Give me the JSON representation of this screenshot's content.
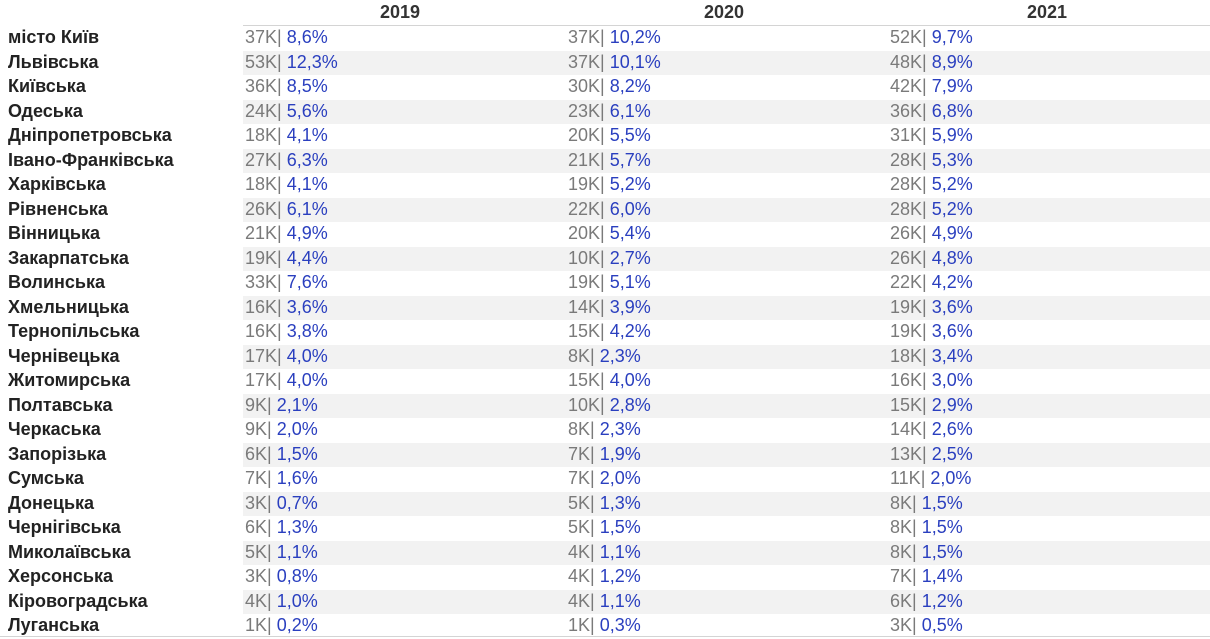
{
  "chart_data": {
    "type": "table",
    "columns": [
      "2019",
      "2020",
      "2021"
    ],
    "separator": "|",
    "rows": [
      {
        "region": "місто Київ",
        "cells": [
          {
            "count": "37K",
            "pct": "8,6%"
          },
          {
            "count": "37K",
            "pct": "10,2%"
          },
          {
            "count": "52K",
            "pct": "9,7%"
          }
        ]
      },
      {
        "region": "Львівська",
        "cells": [
          {
            "count": "53K",
            "pct": "12,3%"
          },
          {
            "count": "37K",
            "pct": "10,1%"
          },
          {
            "count": "48K",
            "pct": "8,9%"
          }
        ]
      },
      {
        "region": "Київська",
        "cells": [
          {
            "count": "36K",
            "pct": "8,5%"
          },
          {
            "count": "30K",
            "pct": "8,2%"
          },
          {
            "count": "42K",
            "pct": "7,9%"
          }
        ]
      },
      {
        "region": "Одеська",
        "cells": [
          {
            "count": "24K",
            "pct": "5,6%"
          },
          {
            "count": "23K",
            "pct": "6,1%"
          },
          {
            "count": "36K",
            "pct": "6,8%"
          }
        ]
      },
      {
        "region": "Дніпропетровська",
        "cells": [
          {
            "count": "18K",
            "pct": "4,1%"
          },
          {
            "count": "20K",
            "pct": "5,5%"
          },
          {
            "count": "31K",
            "pct": "5,9%"
          }
        ]
      },
      {
        "region": "Івано-Франківська",
        "cells": [
          {
            "count": "27K",
            "pct": "6,3%"
          },
          {
            "count": "21K",
            "pct": "5,7%"
          },
          {
            "count": "28K",
            "pct": "5,3%"
          }
        ]
      },
      {
        "region": "Харківська",
        "cells": [
          {
            "count": "18K",
            "pct": "4,1%"
          },
          {
            "count": "19K",
            "pct": "5,2%"
          },
          {
            "count": "28K",
            "pct": "5,2%"
          }
        ]
      },
      {
        "region": "Рівненська",
        "cells": [
          {
            "count": "26K",
            "pct": "6,1%"
          },
          {
            "count": "22K",
            "pct": "6,0%"
          },
          {
            "count": "28K",
            "pct": "5,2%"
          }
        ]
      },
      {
        "region": "Вінницька",
        "cells": [
          {
            "count": "21K",
            "pct": "4,9%"
          },
          {
            "count": "20K",
            "pct": "5,4%"
          },
          {
            "count": "26K",
            "pct": "4,9%"
          }
        ]
      },
      {
        "region": "Закарпатська",
        "cells": [
          {
            "count": "19K",
            "pct": "4,4%"
          },
          {
            "count": "10K",
            "pct": "2,7%"
          },
          {
            "count": "26K",
            "pct": "4,8%"
          }
        ]
      },
      {
        "region": "Волинська",
        "cells": [
          {
            "count": "33K",
            "pct": "7,6%"
          },
          {
            "count": "19K",
            "pct": "5,1%"
          },
          {
            "count": "22K",
            "pct": "4,2%"
          }
        ]
      },
      {
        "region": "Хмельницька",
        "cells": [
          {
            "count": "16K",
            "pct": "3,6%"
          },
          {
            "count": "14K",
            "pct": "3,9%"
          },
          {
            "count": "19K",
            "pct": "3,6%"
          }
        ]
      },
      {
        "region": "Тернопільська",
        "cells": [
          {
            "count": "16K",
            "pct": "3,8%"
          },
          {
            "count": "15K",
            "pct": "4,2%"
          },
          {
            "count": "19K",
            "pct": "3,6%"
          }
        ]
      },
      {
        "region": "Чернівецька",
        "cells": [
          {
            "count": "17K",
            "pct": "4,0%"
          },
          {
            "count": "8K",
            "pct": "2,3%"
          },
          {
            "count": "18K",
            "pct": "3,4%"
          }
        ]
      },
      {
        "region": "Житомирська",
        "cells": [
          {
            "count": "17K",
            "pct": "4,0%"
          },
          {
            "count": "15K",
            "pct": "4,0%"
          },
          {
            "count": "16K",
            "pct": "3,0%"
          }
        ]
      },
      {
        "region": "Полтавська",
        "cells": [
          {
            "count": "9K",
            "pct": "2,1%"
          },
          {
            "count": "10K",
            "pct": "2,8%"
          },
          {
            "count": "15K",
            "pct": "2,9%"
          }
        ]
      },
      {
        "region": "Черкаська",
        "cells": [
          {
            "count": "9K",
            "pct": "2,0%"
          },
          {
            "count": "8K",
            "pct": "2,3%"
          },
          {
            "count": "14K",
            "pct": "2,6%"
          }
        ]
      },
      {
        "region": "Запорізька",
        "cells": [
          {
            "count": "6K",
            "pct": "1,5%"
          },
          {
            "count": "7K",
            "pct": "1,9%"
          },
          {
            "count": "13K",
            "pct": "2,5%"
          }
        ]
      },
      {
        "region": "Сумська",
        "cells": [
          {
            "count": "7K",
            "pct": "1,6%"
          },
          {
            "count": "7K",
            "pct": "2,0%"
          },
          {
            "count": "11K",
            "pct": "2,0%"
          }
        ]
      },
      {
        "region": "Донецька",
        "cells": [
          {
            "count": "3K",
            "pct": "0,7%"
          },
          {
            "count": "5K",
            "pct": "1,3%"
          },
          {
            "count": "8K",
            "pct": "1,5%"
          }
        ]
      },
      {
        "region": "Чернігівська",
        "cells": [
          {
            "count": "6K",
            "pct": "1,3%"
          },
          {
            "count": "5K",
            "pct": "1,5%"
          },
          {
            "count": "8K",
            "pct": "1,5%"
          }
        ]
      },
      {
        "region": "Миколаївська",
        "cells": [
          {
            "count": "5K",
            "pct": "1,1%"
          },
          {
            "count": "4K",
            "pct": "1,1%"
          },
          {
            "count": "8K",
            "pct": "1,5%"
          }
        ]
      },
      {
        "region": "Херсонська",
        "cells": [
          {
            "count": "3K",
            "pct": "0,8%"
          },
          {
            "count": "4K",
            "pct": "1,2%"
          },
          {
            "count": "7K",
            "pct": "1,4%"
          }
        ]
      },
      {
        "region": "Кіровоградська",
        "cells": [
          {
            "count": "4K",
            "pct": "1,0%"
          },
          {
            "count": "4K",
            "pct": "1,1%"
          },
          {
            "count": "6K",
            "pct": "1,2%"
          }
        ]
      },
      {
        "region": "Луганська",
        "cells": [
          {
            "count": "1K",
            "pct": "0,2%"
          },
          {
            "count": "1K",
            "pct": "0,3%"
          },
          {
            "count": "3K",
            "pct": "0,5%"
          }
        ]
      }
    ]
  },
  "colors": {
    "count_text": "#7a7a7a",
    "percent_text": "#2a3fbf",
    "band_fill": "#f2f2f2",
    "region_text": "#222222"
  }
}
